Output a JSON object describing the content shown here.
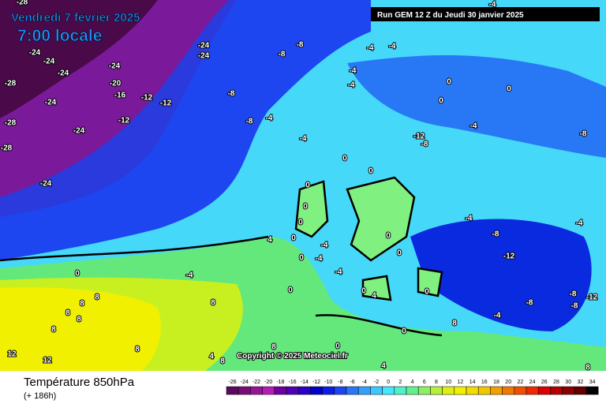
{
  "header": {
    "date": "Vendredi 7 février 2025",
    "time": "7:00 locale",
    "run": "Run GEM 12 Z du Jeudi 30 janvier 2025",
    "copyright": "Copyright © 2025 Meteociel.fr"
  },
  "footer": {
    "title": "Température 850hPa",
    "lead": "(+ 186h)"
  },
  "legend": {
    "ticks": [
      -26,
      -24,
      -22,
      -20,
      -18,
      -16,
      -14,
      -12,
      -10,
      -8,
      -6,
      -4,
      -2,
      0,
      2,
      4,
      6,
      8,
      10,
      12,
      14,
      16,
      18,
      20,
      22,
      24,
      26,
      28,
      30,
      32,
      34
    ],
    "colors": [
      "#5a0a5a",
      "#780f78",
      "#961496",
      "#b41eb4",
      "#6e00a0",
      "#5000b4",
      "#2800c8",
      "#0000c8",
      "#0a1ee6",
      "#1e46f0",
      "#2878f5",
      "#32a0fa",
      "#3cc8ff",
      "#46e6ff",
      "#50f0c8",
      "#64f08c",
      "#8cf064",
      "#b4f03c",
      "#dcf014",
      "#f0f000",
      "#f0dc00",
      "#f0c800",
      "#f0a000",
      "#f07800",
      "#f05000",
      "#f02800",
      "#dc0000",
      "#b40000",
      "#8c0000",
      "#640000",
      "#000000"
    ]
  },
  "map_labels": [
    -28,
    -24,
    -24,
    -24,
    -24,
    -20,
    -16,
    -12,
    -12,
    -12,
    -24,
    -28,
    -28,
    -24,
    -28,
    -24,
    -24,
    -24,
    -8,
    -8,
    -8,
    -8,
    -4,
    -4,
    -4,
    -4,
    -4,
    -4,
    -4,
    0,
    0,
    0,
    -4,
    -12,
    -8,
    -8,
    0,
    0,
    0,
    0,
    0,
    0,
    0,
    4,
    -4,
    -4,
    0,
    0,
    -4,
    -4,
    -8,
    -12,
    -4,
    0,
    -4,
    8,
    8,
    0,
    8,
    4,
    0,
    0,
    -8,
    -8,
    -8,
    -12,
    -4,
    8,
    8,
    8,
    8,
    4,
    8,
    0,
    0,
    8,
    8,
    12,
    12,
    4,
    8
  ]
}
